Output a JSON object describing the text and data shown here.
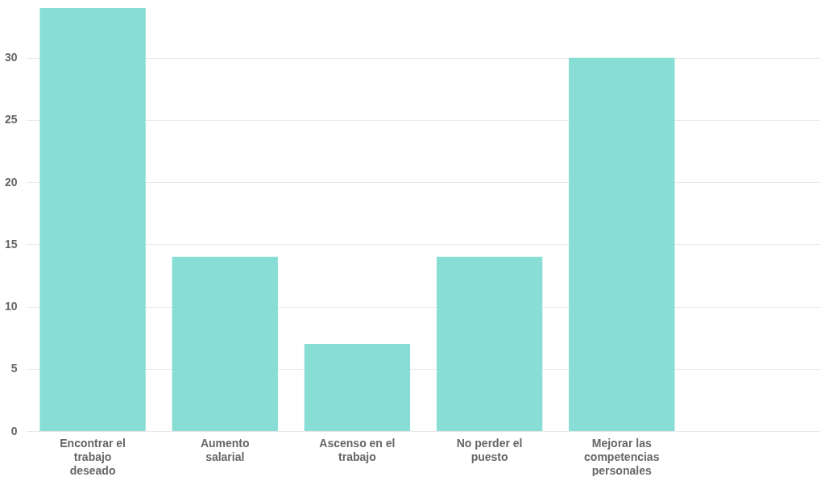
{
  "chart_data": {
    "type": "bar",
    "categories": [
      "Encontrar el trabajo deseado",
      "Aumento salarial",
      "Ascenso en el trabajo",
      "No perder el puesto",
      "Mejorar las competencias personales",
      null
    ],
    "values": [
      34,
      14,
      7,
      14,
      30,
      null
    ],
    "color": "#88ddd4",
    "ylim": [
      0,
      34
    ],
    "yticks": [
      0,
      5,
      10,
      15,
      20,
      25,
      30
    ],
    "grid": "y"
  }
}
